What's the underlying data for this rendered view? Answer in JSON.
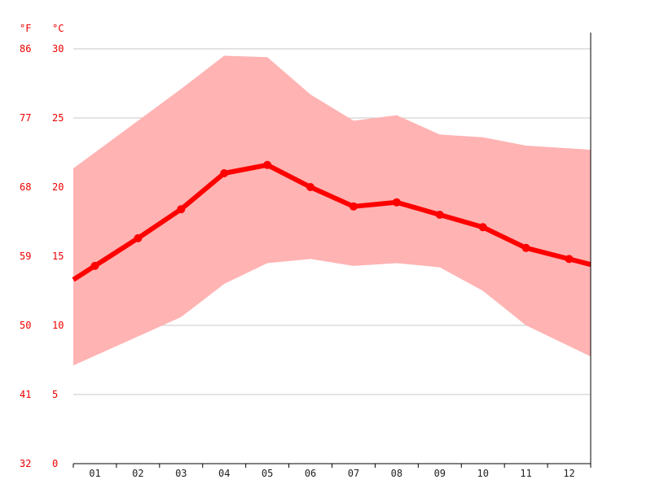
{
  "chart_data": {
    "type": "line",
    "categories": [
      "01",
      "02",
      "03",
      "04",
      "05",
      "06",
      "07",
      "08",
      "09",
      "10",
      "11",
      "12"
    ],
    "unit_f": "°F",
    "unit_c": "°C",
    "yticks_c": [
      "0",
      "5",
      "10",
      "15",
      "20",
      "25",
      "30"
    ],
    "yticks_f": [
      "32",
      "41",
      "50",
      "59",
      "68",
      "77",
      "86"
    ],
    "ylim": [
      0,
      30
    ],
    "grid": true,
    "series": [
      {
        "values": [
          14.3,
          16.3,
          18.4,
          21.0,
          21.6,
          20.0,
          18.6,
          18.9,
          18.0,
          17.1,
          15.6,
          14.8
        ]
      }
    ],
    "range_high": [
      22.5,
      24.8,
      27.1,
      29.5,
      29.4,
      26.7,
      24.8,
      25.2,
      23.8,
      23.6,
      23.0,
      22.8
    ],
    "range_low": [
      7.8,
      9.2,
      10.6,
      13.0,
      14.5,
      14.8,
      14.3,
      14.5,
      14.2,
      12.5,
      10.0,
      8.5
    ],
    "colors": {
      "line": "#ff0000",
      "band": "#ffb3b3",
      "grid": "#c8c8c8",
      "axis": "#000000"
    }
  }
}
